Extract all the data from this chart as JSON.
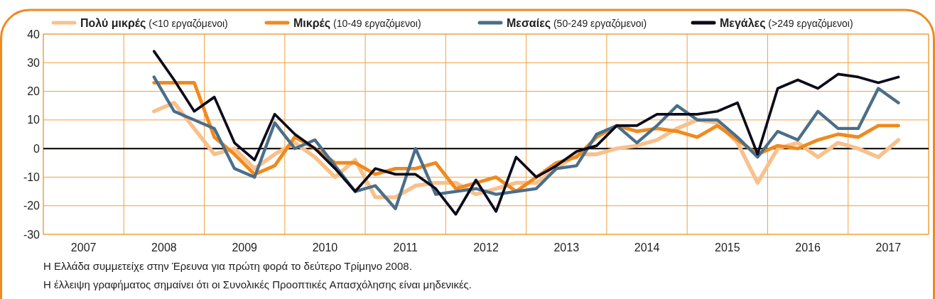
{
  "chart_data": {
    "type": "line",
    "x": [
      2008.375,
      2008.625,
      2008.875,
      2009.125,
      2009.375,
      2009.625,
      2009.875,
      2010.125,
      2010.375,
      2010.625,
      2010.875,
      2011.125,
      2011.375,
      2011.625,
      2011.875,
      2012.125,
      2012.375,
      2012.625,
      2012.875,
      2013.125,
      2013.375,
      2013.625,
      2013.875,
      2014.125,
      2014.375,
      2014.625,
      2014.875,
      2015.125,
      2015.375,
      2015.625,
      2015.875,
      2016.125,
      2016.375,
      2016.625,
      2016.875,
      2017.125,
      2017.375,
      2017.625
    ],
    "series": [
      {
        "name": "Πολύ μικρές (<10 εργαζόμενοι)",
        "color": "#f8c18c",
        "values": [
          13,
          16,
          7,
          -2,
          0,
          -7,
          -2,
          2,
          -3,
          -10,
          -4,
          -17,
          -17,
          -13,
          -12,
          -12,
          -16,
          -14,
          -12,
          -12,
          -7,
          -2,
          -2,
          0,
          1,
          3,
          7,
          10,
          9,
          2,
          -12,
          0,
          2,
          -3,
          2,
          0,
          -3,
          3
        ]
      },
      {
        "name": "Μικρές (10-49 εργαζόμενοι)",
        "color": "#ef8a1f",
        "values": [
          23,
          23,
          23,
          4,
          -2,
          -9,
          -6,
          4,
          0,
          -5,
          -5,
          -9,
          -7,
          -7,
          -5,
          -14,
          -12,
          -10,
          -15,
          -10,
          -5,
          -3,
          4,
          8,
          6,
          7,
          6,
          4,
          8,
          3,
          -2,
          1,
          0,
          3,
          5,
          4,
          8,
          8
        ]
      },
      {
        "name": "Μεσαίες (50-249 εργαζόμενοι)",
        "color": "#4a6e8a",
        "values": [
          25,
          13,
          10,
          7,
          -7,
          -10,
          9,
          0,
          3,
          -6,
          -15,
          -13,
          -21,
          0,
          -16,
          -15,
          -14,
          -16,
          -15,
          -14,
          -7,
          -6,
          5,
          8,
          2,
          8,
          15,
          10,
          10,
          4,
          -3,
          6,
          3,
          13,
          7,
          7,
          21,
          16
        ]
      },
      {
        "name": "Μεγάλες (>249 εργαζόμενοι)",
        "color": "#0b0b1a",
        "values": [
          34,
          24,
          13,
          18,
          2,
          -4,
          12,
          5,
          0,
          -7,
          -15,
          -7,
          -9,
          -9,
          -14,
          -23,
          -11,
          -22,
          -3,
          -10,
          -6,
          -1,
          1,
          8,
          8,
          12,
          12,
          12,
          13,
          16,
          -2,
          21,
          24,
          21,
          26,
          25,
          23,
          25
        ]
      }
    ],
    "xlim": [
      2007,
      2018
    ],
    "xticks": [
      {
        "value": 2007,
        "label": null
      },
      {
        "value": 2007.5,
        "label": "2007"
      },
      {
        "value": 2008,
        "label": null
      },
      {
        "value": 2008.5,
        "label": "2008"
      },
      {
        "value": 2009,
        "label": null
      },
      {
        "value": 2009.5,
        "label": "2009"
      },
      {
        "value": 2010,
        "label": null
      },
      {
        "value": 2010.5,
        "label": "2010"
      },
      {
        "value": 2011,
        "label": null
      },
      {
        "value": 2011.5,
        "label": "2011"
      },
      {
        "value": 2012,
        "label": null
      },
      {
        "value": 2012.5,
        "label": "2012"
      },
      {
        "value": 2013,
        "label": null
      },
      {
        "value": 2013.5,
        "label": "2013"
      },
      {
        "value": 2014,
        "label": null
      },
      {
        "value": 2014.5,
        "label": "2014"
      },
      {
        "value": 2015,
        "label": null
      },
      {
        "value": 2015.5,
        "label": "2015"
      },
      {
        "value": 2016,
        "label": null
      },
      {
        "value": 2016.5,
        "label": "2016"
      },
      {
        "value": 2017,
        "label": null
      },
      {
        "value": 2017.5,
        "label": "2017"
      },
      {
        "value": 2018,
        "label": null
      }
    ],
    "ylim": [
      -30,
      40
    ],
    "yticks": [
      -30,
      -20,
      -10,
      0,
      10,
      20,
      30,
      40
    ],
    "grid": true,
    "legend": "top",
    "marker": "none",
    "line_style": "solid",
    "ref_lines": [
      {
        "axis": "y",
        "value": 0,
        "color": "#000000"
      }
    ],
    "annotations": [
      "Η Ελλάδα συμμετείχε στην Έρευνα για πρώτη φορά το δεύτερο Τρίμηνο 2008.",
      "Η έλλειψη γραφήματος σημαίνει ότι οι Συνολικές Προοπτικές Απασχόλησης είναι μηδενικές."
    ]
  }
}
